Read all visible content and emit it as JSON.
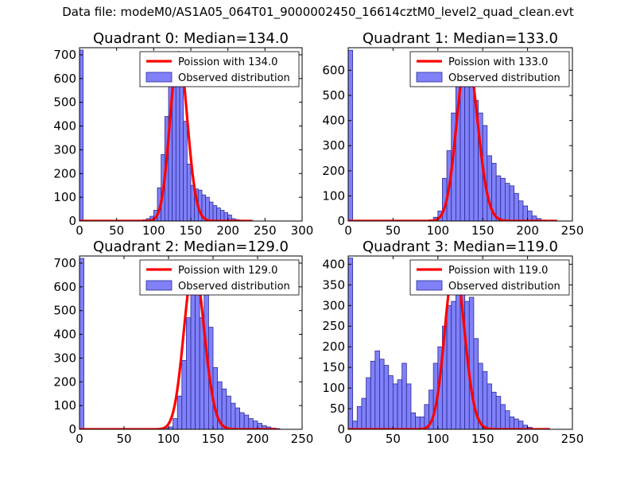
{
  "suptitle": "Data file: modeM0/AS1A05_064T01_9000002450_16614cztM0_level2_quad_clean.evt",
  "colors": {
    "bar_fill": "#8080f8",
    "bar_edge": "#2b2b9a",
    "fit_line": "#ff0000",
    "axis": "#000000",
    "legend_edge": "#000000"
  },
  "chart_data": [
    {
      "type": "bar",
      "title": "Quadrant 0: Median=134.0",
      "xlim": [
        0,
        300
      ],
      "ylim": [
        0,
        730
      ],
      "xticks": [
        0,
        50,
        100,
        150,
        200,
        250,
        300
      ],
      "yticks": [
        0,
        100,
        200,
        300,
        400,
        500,
        600,
        700
      ],
      "legend_position": "top-right",
      "legend": [
        "Poission with 134.0",
        "Observed distribution"
      ],
      "bin_width": 5,
      "histogram": {
        "left_edges": [
          0,
          75,
          80,
          85,
          90,
          95,
          100,
          105,
          110,
          115,
          120,
          125,
          130,
          135,
          140,
          145,
          150,
          155,
          160,
          165,
          170,
          175,
          180,
          185,
          190,
          195,
          200,
          205,
          210,
          215,
          220,
          225,
          230
        ],
        "counts": [
          720,
          1,
          3,
          5,
          10,
          20,
          45,
          140,
          280,
          440,
          620,
          700,
          680,
          600,
          420,
          240,
          150,
          135,
          130,
          110,
          100,
          80,
          65,
          55,
          45,
          35,
          25,
          10,
          6,
          4,
          2,
          1,
          1
        ]
      },
      "poisson": {
        "mean": 134.0,
        "label": "Poission with 134.0",
        "x_range": [
          0,
          233
        ],
        "peak_height": 710
      }
    },
    {
      "type": "bar",
      "title": "Quadrant 1: Median=133.0",
      "xlim": [
        0,
        250
      ],
      "ylim": [
        0,
        690
      ],
      "xticks": [
        0,
        50,
        100,
        150,
        200,
        250
      ],
      "yticks": [
        0,
        100,
        200,
        300,
        400,
        500,
        600
      ],
      "legend_position": "top-right",
      "legend": [
        "Poission with 133.0",
        "Observed distribution"
      ],
      "bin_width": 5,
      "histogram": {
        "left_edges": [
          0,
          90,
          95,
          100,
          105,
          110,
          115,
          120,
          125,
          130,
          135,
          140,
          145,
          150,
          155,
          160,
          165,
          170,
          175,
          180,
          185,
          190,
          195,
          200,
          205,
          210,
          215
        ],
        "counts": [
          680,
          5,
          15,
          40,
          170,
          280,
          430,
          570,
          620,
          640,
          580,
          480,
          430,
          380,
          260,
          230,
          180,
          170,
          150,
          140,
          110,
          80,
          60,
          40,
          20,
          10,
          4
        ]
      },
      "poisson": {
        "mean": 133.0,
        "label": "Poission with 133.0",
        "x_range": [
          0,
          233
        ],
        "peak_height": 660
      }
    },
    {
      "type": "bar",
      "title": "Quadrant 2: Median=129.0",
      "xlim": [
        0,
        250
      ],
      "ylim": [
        0,
        730
      ],
      "xticks": [
        0,
        50,
        100,
        150,
        200,
        250
      ],
      "yticks": [
        0,
        100,
        200,
        300,
        400,
        500,
        600,
        700
      ],
      "legend_position": "top-right",
      "legend": [
        "Poission with 129.0",
        "Observed distribution"
      ],
      "bin_width": 5,
      "histogram": {
        "left_edges": [
          0,
          95,
          100,
          105,
          110,
          115,
          120,
          125,
          130,
          135,
          140,
          145,
          150,
          155,
          160,
          165,
          170,
          175,
          180,
          185,
          190,
          195,
          200,
          205,
          210,
          215,
          220
        ],
        "counts": [
          720,
          5,
          10,
          45,
          140,
          290,
          470,
          660,
          680,
          470,
          580,
          430,
          260,
          200,
          170,
          140,
          110,
          90,
          70,
          60,
          45,
          35,
          25,
          15,
          10,
          5,
          3
        ]
      },
      "poisson": {
        "mean": 129.0,
        "label": "Poission with 129.0",
        "x_range": [
          0,
          222
        ],
        "peak_height": 690
      }
    },
    {
      "type": "bar",
      "title": "Quadrant 3: Median=119.0",
      "xlim": [
        0,
        250
      ],
      "ylim": [
        0,
        420
      ],
      "xticks": [
        0,
        50,
        100,
        150,
        200,
        250
      ],
      "yticks": [
        0,
        50,
        100,
        150,
        200,
        250,
        300,
        350,
        400
      ],
      "legend_position": "top-right",
      "legend": [
        "Poission with 119.0",
        "Observed distribution"
      ],
      "bin_width": 5,
      "histogram": {
        "left_edges": [
          0,
          5,
          10,
          15,
          20,
          25,
          30,
          35,
          40,
          45,
          50,
          55,
          60,
          65,
          70,
          75,
          80,
          85,
          90,
          95,
          100,
          105,
          110,
          115,
          120,
          125,
          130,
          135,
          140,
          145,
          150,
          155,
          160,
          165,
          170,
          175,
          180,
          185,
          190,
          195,
          200
        ],
        "counts": [
          415,
          20,
          55,
          75,
          125,
          165,
          190,
          170,
          155,
          130,
          110,
          120,
          160,
          110,
          40,
          30,
          30,
          60,
          95,
          160,
          200,
          250,
          300,
          310,
          350,
          380,
          310,
          320,
          220,
          160,
          140,
          110,
          90,
          80,
          60,
          45,
          30,
          25,
          20,
          10,
          5
        ]
      },
      "poisson": {
        "mean": 119.0,
        "label": "Poission with 119.0",
        "x_range": [
          0,
          225
        ],
        "peak_height": 398
      }
    }
  ]
}
